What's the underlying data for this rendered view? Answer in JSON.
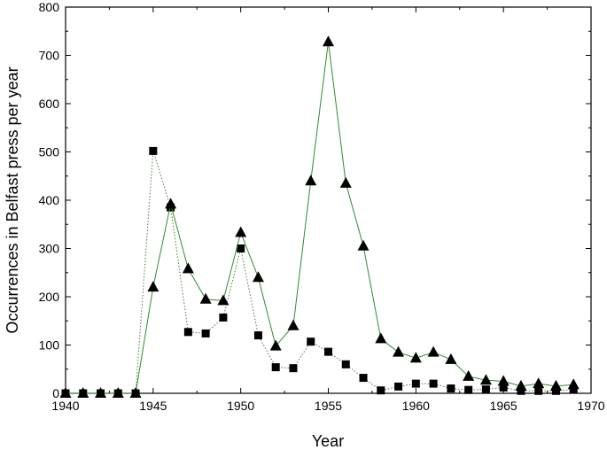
{
  "chart_data": {
    "type": "line",
    "title": "",
    "xlabel": "Year",
    "ylabel": "Occurrences in Belfast press per year",
    "xlim": [
      1940,
      1970
    ],
    "ylim": [
      0,
      800
    ],
    "xticks": [
      1940,
      1945,
      1950,
      1955,
      1960,
      1965,
      1970
    ],
    "yticks": [
      0,
      100,
      200,
      300,
      400,
      500,
      600,
      700,
      800
    ],
    "grid": false,
    "legend": "none",
    "series": [
      {
        "marker": "square",
        "line_style": "dotted",
        "color": "#4a7a3a",
        "x": [
          1940,
          1941,
          1942,
          1943,
          1944,
          1945,
          1946,
          1947,
          1948,
          1949,
          1950,
          1951,
          1952,
          1953,
          1954,
          1955,
          1956,
          1957,
          1958,
          1959,
          1960,
          1961,
          1962,
          1963,
          1964,
          1965,
          1966,
          1967,
          1968,
          1969
        ],
        "values": [
          0,
          0,
          0,
          0,
          0,
          502,
          385,
          127,
          124,
          157,
          300,
          120,
          54,
          52,
          107,
          86,
          60,
          32,
          6,
          14,
          20,
          20,
          10,
          7,
          8,
          12,
          5,
          5,
          5,
          8
        ]
      },
      {
        "marker": "triangle",
        "line_style": "solid",
        "color": "#2e8b2e",
        "x": [
          1940,
          1941,
          1942,
          1943,
          1944,
          1945,
          1946,
          1947,
          1948,
          1949,
          1950,
          1951,
          1952,
          1953,
          1954,
          1955,
          1956,
          1957,
          1958,
          1959,
          1960,
          1961,
          1962,
          1963,
          1964,
          1965,
          1966,
          1967,
          1968,
          1969
        ],
        "values": [
          0,
          0,
          0,
          0,
          0,
          220,
          392,
          258,
          195,
          192,
          333,
          240,
          98,
          140,
          440,
          728,
          435,
          305,
          113,
          85,
          73,
          85,
          70,
          35,
          27,
          25,
          15,
          20,
          15,
          18
        ]
      }
    ]
  }
}
